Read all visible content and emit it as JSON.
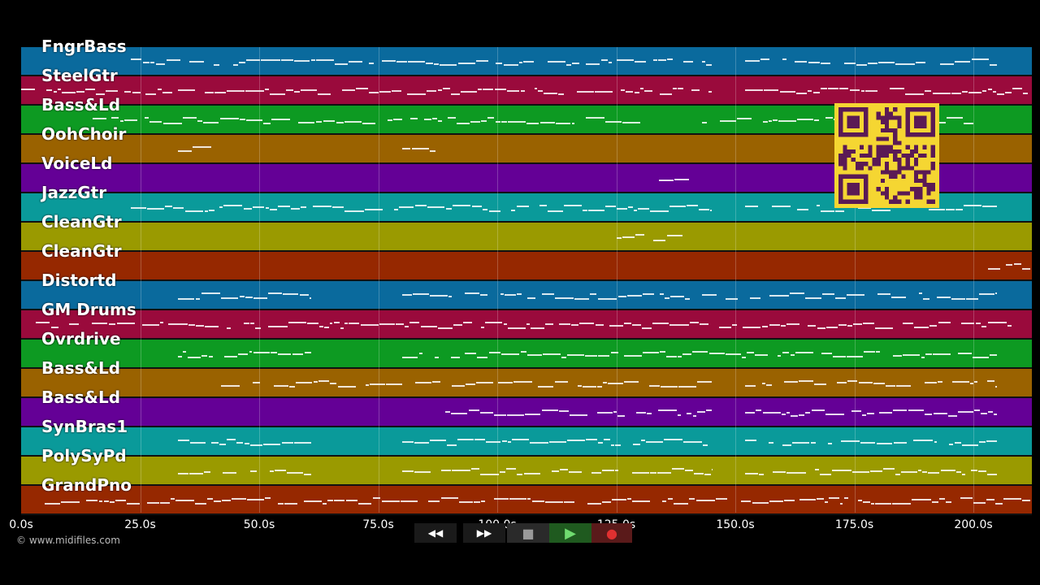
{
  "tracks": [
    {
      "label": "FngrBass",
      "color": "#0a6a9d"
    },
    {
      "label": "SteelGtr",
      "color": "#9a0a3c"
    },
    {
      "label": "Bass&Ld",
      "color": "#0d9a22"
    },
    {
      "label": "OohChoir",
      "color": "#9a6200"
    },
    {
      "label": "VoiceLd",
      "color": "#640096"
    },
    {
      "label": "JazzGtr",
      "color": "#0a9a9a"
    },
    {
      "label": "CleanGtr",
      "color": "#9a9a00"
    },
    {
      "label": "CleanGtr",
      "color": "#962800"
    },
    {
      "label": "Distortd",
      "color": "#0a6a9d"
    },
    {
      "label": "GM Drums",
      "color": "#9a0a3c"
    },
    {
      "label": "Ovrdrive",
      "color": "#0d9a22"
    },
    {
      "label": "Bass&Ld",
      "color": "#9a6200"
    },
    {
      "label": "Bass&Ld",
      "color": "#640096"
    },
    {
      "label": "SynBras1",
      "color": "#0a9a9a"
    },
    {
      "label": "PolySyPd",
      "color": "#9a9a00"
    },
    {
      "label": "GrandPno",
      "color": "#962800"
    }
  ],
  "timeline": {
    "ticks": [
      "0.0s",
      "25.0s",
      "50.0s",
      "75.0s",
      "100.0s",
      "125.0s",
      "150.0s",
      "175.0s",
      "200.0s"
    ],
    "tick_seconds": [
      0,
      25,
      50,
      75,
      100,
      125,
      150,
      175,
      200
    ],
    "max_seconds": 212
  },
  "copyright": "© www.midifiles.com",
  "controls": {
    "rewind_label": "◀◀",
    "forward_label": "▶▶",
    "stop_label": "■",
    "play_label": "▶",
    "record_label": "●"
  },
  "qr": {
    "color": "#5a1a55",
    "bg": "#f5d632"
  }
}
